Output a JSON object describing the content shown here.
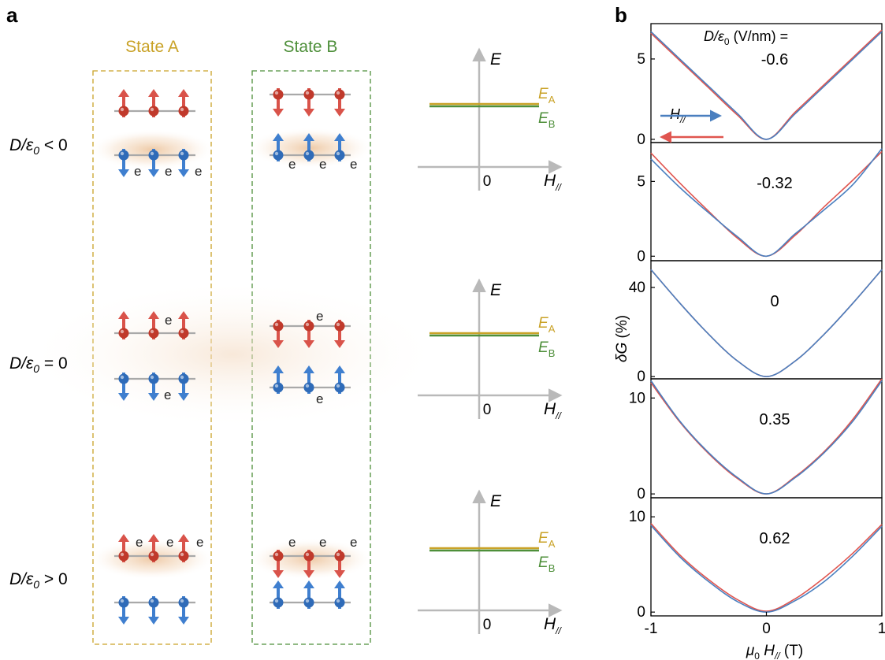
{
  "panel_a": {
    "label": "a",
    "state_a": "State A",
    "state_b": "State B",
    "rows": [
      {
        "cond_pre": "D/",
        "cond_eps": "ε",
        "cond_sub": "0",
        "cond_op": " < 0"
      },
      {
        "cond_pre": "D/",
        "cond_eps": "ε",
        "cond_sub": "0",
        "cond_op": " = 0"
      },
      {
        "cond_pre": "D/",
        "cond_eps": "ε",
        "cond_sub": "0",
        "cond_op": " > 0"
      }
    ],
    "electron": "e",
    "energy_axis": "E",
    "field_axis": "H",
    "field_sub": "//",
    "zero": "0",
    "ea_main": "E",
    "ea_sub": "A",
    "eb_main": "E",
    "eb_sub": "B"
  },
  "panel_b": {
    "label": "b",
    "header_pre": "D/ε",
    "header_sub": "0",
    "header_post": " (V/nm) =",
    "sweep_label_main": "H",
    "sweep_label_sub": "//",
    "ylabel_delta": "δ",
    "ylabel_G": "G",
    "ylabel_rest": " (%)",
    "xlabel_mu": "μ",
    "xlabel_mu_sub": "0",
    "xlabel_H": " H",
    "xlabel_H_sub": "//",
    "xlabel_unit": " (T)"
  },
  "colors": {
    "gold": "#c9a227",
    "green": "#4e8f3a",
    "red_spin": "#d9534a",
    "blue_spin": "#3f7fcf",
    "trace_red": "#e0554f",
    "trace_blue": "#4a7fbf",
    "axis_gray": "#b9b9b9"
  },
  "chart_data": {
    "type": "line",
    "xlabel": "μ0 H// (T)",
    "ylabel": "δG (%)",
    "xlim": [
      -1,
      1
    ],
    "xticks": [
      "-1",
      "0",
      "1"
    ],
    "series_names": [
      "forward sweep",
      "backward sweep"
    ],
    "panels": [
      {
        "D": "-0.6",
        "ylim": [
          -0.2,
          7.2
        ],
        "yticks": [
          0,
          5
        ],
        "ytick_labels": [
          "0",
          "5"
        ],
        "x": [
          -1,
          -0.75,
          -0.5,
          -0.25,
          0,
          0.25,
          0.5,
          0.75,
          1
        ],
        "forward": [
          6.7,
          5.0,
          3.3,
          1.6,
          0.0,
          1.6,
          3.3,
          5.0,
          6.7
        ],
        "backward": [
          6.6,
          4.9,
          3.2,
          1.5,
          0.0,
          1.7,
          3.4,
          5.1,
          6.8
        ]
      },
      {
        "D": "-0.32",
        "ylim": [
          -0.3,
          7.6
        ],
        "yticks": [
          0,
          5
        ],
        "ytick_labels": [
          "0",
          "5"
        ],
        "x": [
          -1,
          -0.75,
          -0.5,
          -0.25,
          0,
          0.25,
          0.5,
          0.75,
          1
        ],
        "forward": [
          6.5,
          4.6,
          2.9,
          1.3,
          0.0,
          1.5,
          3.1,
          4.8,
          7.2
        ],
        "backward": [
          6.9,
          4.9,
          3.0,
          1.2,
          0.0,
          1.4,
          3.3,
          5.1,
          7.0
        ]
      },
      {
        "D": "0",
        "ylim": [
          -1,
          52
        ],
        "yticks": [
          0,
          40
        ],
        "ytick_labels": [
          "0",
          "40"
        ],
        "x": [
          -1,
          -0.75,
          -0.5,
          -0.25,
          0,
          0.25,
          0.5,
          0.75,
          1
        ],
        "forward": [
          48,
          33,
          19,
          7,
          0,
          7,
          19,
          33,
          48
        ],
        "backward": [
          48,
          33,
          19,
          7,
          0,
          7,
          19,
          33,
          48
        ]
      },
      {
        "D": "0.35",
        "ylim": [
          -0.4,
          12
        ],
        "yticks": [
          0,
          10
        ],
        "ytick_labels": [
          "0",
          "10"
        ],
        "x": [
          -1,
          -0.75,
          -0.5,
          -0.25,
          0,
          0.25,
          0.5,
          0.75,
          1
        ],
        "forward": [
          11.8,
          7.6,
          4.3,
          1.7,
          0.0,
          1.7,
          4.3,
          7.6,
          11.8
        ],
        "backward": [
          11.6,
          7.5,
          4.2,
          1.6,
          0.0,
          1.8,
          4.4,
          7.8,
          12.0
        ]
      },
      {
        "D": "0.62",
        "ylim": [
          -0.4,
          12
        ],
        "yticks": [
          0,
          10
        ],
        "ytick_labels": [
          "0",
          "10"
        ],
        "x": [
          -1,
          -0.75,
          -0.5,
          -0.25,
          0,
          0.25,
          0.5,
          0.75,
          1
        ],
        "forward": [
          9.1,
          5.8,
          3.2,
          1.1,
          0.0,
          1.2,
          3.2,
          5.9,
          9.0
        ],
        "backward": [
          9.3,
          6.0,
          3.4,
          1.3,
          0.1,
          1.4,
          3.6,
          6.2,
          9.2
        ]
      }
    ]
  }
}
